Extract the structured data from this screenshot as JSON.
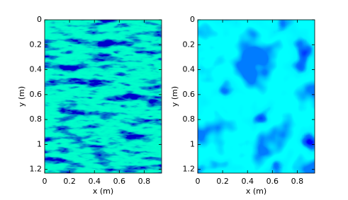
{
  "chart_data": [
    {
      "type": "heatmap",
      "xlabel": "x (m)",
      "ylabel": "y (m)",
      "xlim": [
        0,
        0.94
      ],
      "ylim": [
        0,
        1.23
      ],
      "y_inverted": true,
      "xticks": [
        0,
        0.2,
        0.4,
        0.6,
        0.8
      ],
      "yticks": [
        0,
        0.2,
        0.4,
        0.6,
        0.8,
        1,
        1.2
      ]
    },
    {
      "type": "heatmap",
      "xlabel": "x (m)",
      "ylabel": "y (m)",
      "xlim": [
        0,
        0.94
      ],
      "ylim": [
        0,
        1.23
      ],
      "y_inverted": true,
      "xticks": [
        0,
        0.2,
        0.4,
        0.6,
        0.8
      ],
      "yticks": [
        0,
        0.2,
        0.4,
        0.6,
        0.8,
        1,
        1.2
      ]
    }
  ]
}
